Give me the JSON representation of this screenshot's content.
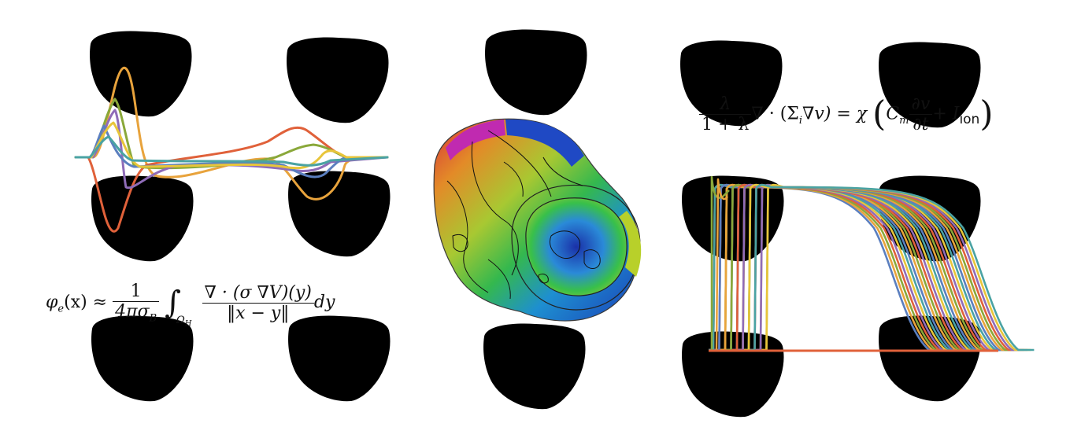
{
  "figure": {
    "panels": [
      {
        "id": "ecg",
        "content": "pseudo-ECG lead traces overlaid on heart geometries"
      },
      {
        "id": "activation",
        "content": "activation map on biventricular mesh with isochrones"
      },
      {
        "id": "action_potentials",
        "content": "transmembrane action potential traces"
      }
    ],
    "equations": {
      "ecg_lhs": "φ",
      "ecg_lhs_sub": "e",
      "ecg_lhs_arg": "(x) ≈",
      "ecg_frac_num": "1",
      "ecg_frac_den": "4πσ",
      "ecg_frac_den_sub": "B",
      "ecg_integral_sub": "Ω",
      "ecg_integral_sub_sub": "H",
      "ecg_num": "∇ · (σ ∇V)(y)",
      "ecg_den": "‖x − y‖",
      "ecg_tail": "dy",
      "mono_frac_num": "λ",
      "mono_frac_den": "1 + λ",
      "mono_lhs": "∇ · (Σ",
      "mono_lhs_sub": "i",
      "mono_lhs_tail": "∇v) = χ",
      "mono_c": "C",
      "mono_c_sub": "m",
      "mono_dv_num": "∂v",
      "mono_dv_den": "∂t",
      "mono_plus": "+ I",
      "mono_ion": "ion"
    },
    "colors": {
      "blue": "#5b7fbf",
      "orange": "#e8a33c",
      "red": "#e0613a",
      "green": "#8aa83a",
      "purple": "#8f6cb8",
      "yellow": "#e8c53a",
      "teal": "#4aa3a3",
      "heart_gray": "#eeeeee"
    }
  }
}
